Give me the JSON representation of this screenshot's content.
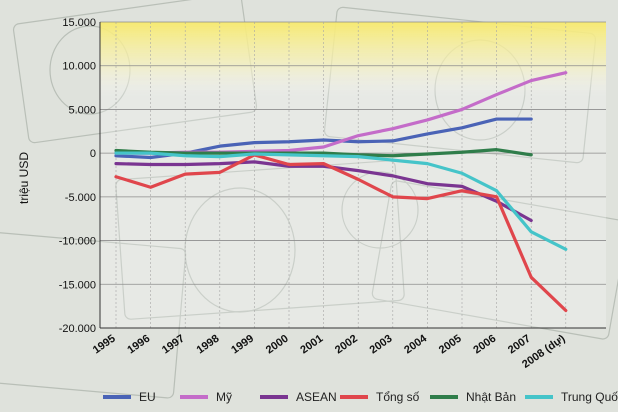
{
  "chart_data": {
    "type": "line",
    "ylabel": "triệu USD",
    "ylim": [
      -20000,
      15000
    ],
    "y_ticks": [
      "15.000",
      "10.000",
      "5.000",
      "0",
      "-5.000",
      "-10.000",
      "-15.000",
      "-20.000"
    ],
    "categories": [
      "1995",
      "1996",
      "1997",
      "1998",
      "1999",
      "2000",
      "2001",
      "2002",
      "2003",
      "2004",
      "2005",
      "2006",
      "2007",
      "2008 (dự)"
    ],
    "grid": true,
    "legend_position": "bottom",
    "series": [
      {
        "name": "EU",
        "color": "#4a63b6",
        "values": [
          -300,
          -500,
          0,
          800,
          1200,
          1300,
          1500,
          1300,
          1400,
          2200,
          2900,
          3900,
          3900,
          null
        ]
      },
      {
        "name": "Mỹ",
        "color": "#c46cc9",
        "values": [
          0,
          0,
          100,
          100,
          200,
          300,
          700,
          2000,
          2800,
          3800,
          5000,
          6700,
          8300,
          9200
        ]
      },
      {
        "name": "ASEAN",
        "color": "#7a3591",
        "values": [
          -1200,
          -1300,
          -1300,
          -1200,
          -1000,
          -1500,
          -1500,
          -2000,
          -2600,
          -3500,
          -3800,
          -5500,
          -7700,
          null
        ]
      },
      {
        "name": "Tổng số",
        "color": "#e0464c",
        "values": [
          -2700,
          -3900,
          -2400,
          -2200,
          -200,
          -1300,
          -1200,
          -3000,
          -5000,
          -5200,
          -4300,
          -5000,
          -14200,
          -18000
        ]
      },
      {
        "name": "Nhật Bản",
        "color": "#2f7d4a",
        "values": [
          300,
          100,
          0,
          0,
          0,
          0,
          0,
          -200,
          -300,
          -100,
          100,
          400,
          -200,
          null
        ]
      },
      {
        "name": "Trung Quốc",
        "color": "#45c4c9",
        "values": [
          0,
          0,
          -300,
          -400,
          -100,
          -200,
          -300,
          -400,
          -800,
          -1200,
          -2300,
          -4300,
          -9000,
          -11000
        ]
      }
    ]
  }
}
